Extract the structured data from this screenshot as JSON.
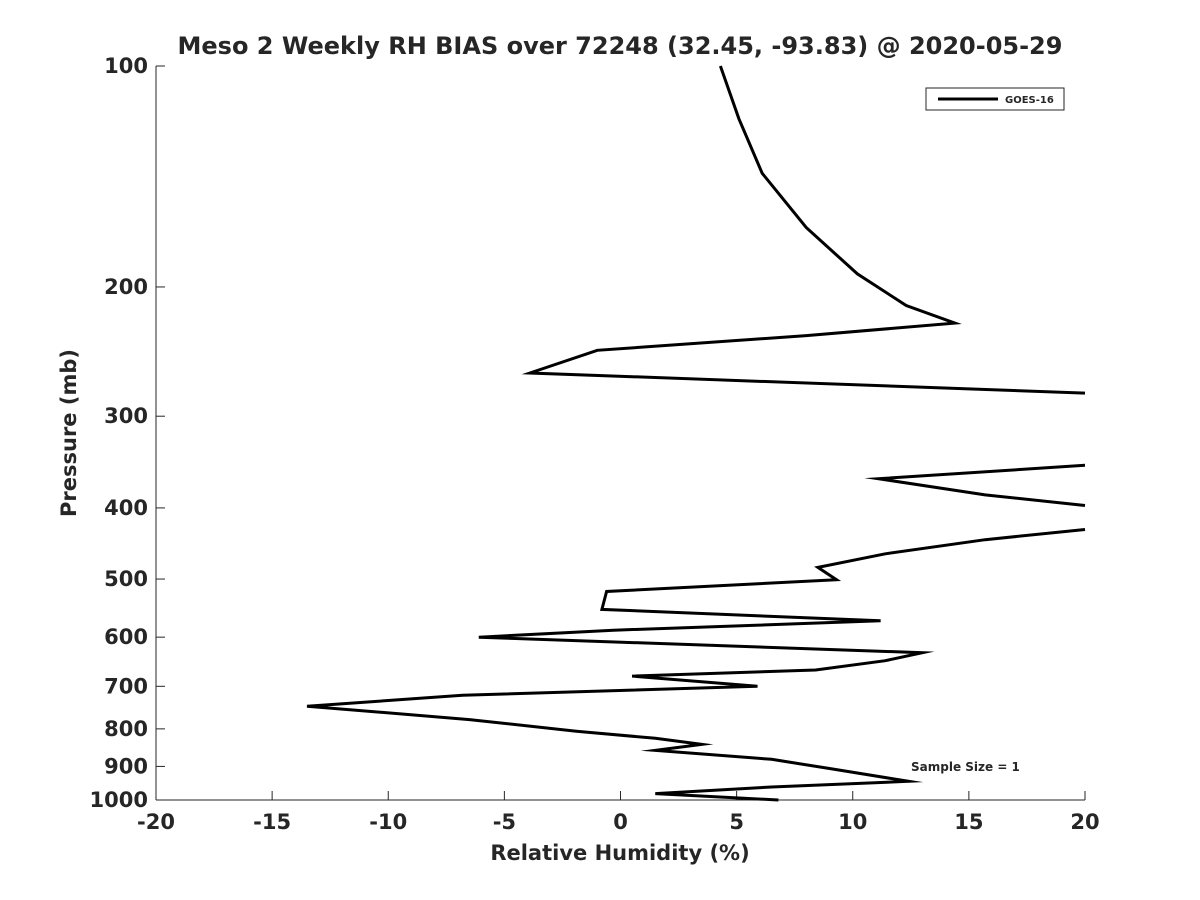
{
  "chart_data": {
    "type": "line",
    "title": "Meso 2 Weekly RH BIAS over 72248 (32.45, -93.83) @ 2020-05-29",
    "xlabel": "Relative Humidity (%)",
    "ylabel": "Pressure (mb)",
    "xlim": [
      -20,
      20
    ],
    "ylim": [
      1000,
      100
    ],
    "y_scale": "log",
    "x_ticks": [
      -20,
      -15,
      -10,
      -5,
      0,
      5,
      10,
      15,
      20
    ],
    "y_ticks": [
      100,
      200,
      300,
      400,
      500,
      600,
      700,
      800,
      900,
      1000
    ],
    "grid": false,
    "legend_position": "top-right",
    "annotation": "Sample Size = 1",
    "line_color": "#000000",
    "series": [
      {
        "name": "GOES-16",
        "points": [
          [
            4.3,
            100
          ],
          [
            5.1,
            118
          ],
          [
            6.1,
            140
          ],
          [
            8.0,
            166
          ],
          [
            10.2,
            192
          ],
          [
            12.3,
            212
          ],
          [
            14.4,
            224
          ],
          [
            8.0,
            233
          ],
          [
            -1.0,
            244
          ],
          [
            -3.9,
            262
          ],
          [
            20.0,
            279
          ],
          [
            null,
            null
          ],
          [
            20.0,
            350
          ],
          [
            11.1,
            365
          ],
          [
            15.7,
            384
          ],
          [
            20.0,
            397
          ],
          [
            null,
            null
          ],
          [
            20.0,
            428
          ],
          [
            15.7,
            442
          ],
          [
            11.4,
            462
          ],
          [
            8.5,
            482
          ],
          [
            9.3,
            501
          ],
          [
            -0.6,
            520
          ],
          [
            -0.8,
            550
          ],
          [
            11.2,
            570
          ],
          [
            -0.3,
            587
          ],
          [
            -6.1,
            600
          ],
          [
            13.0,
            630
          ],
          [
            11.4,
            646
          ],
          [
            8.4,
            665
          ],
          [
            0.5,
            678
          ],
          [
            5.9,
            700
          ],
          [
            -6.8,
            720
          ],
          [
            -13.5,
            745
          ],
          [
            -6.5,
            777
          ],
          [
            -1.9,
            806
          ],
          [
            1.5,
            824
          ],
          [
            3.5,
            840
          ],
          [
            1.5,
            856
          ],
          [
            6.5,
            880
          ],
          [
            9.0,
            906
          ],
          [
            12.4,
            943
          ],
          [
            6.5,
            960
          ],
          [
            1.5,
            980
          ],
          [
            6.8,
            1000
          ]
        ]
      }
    ]
  }
}
